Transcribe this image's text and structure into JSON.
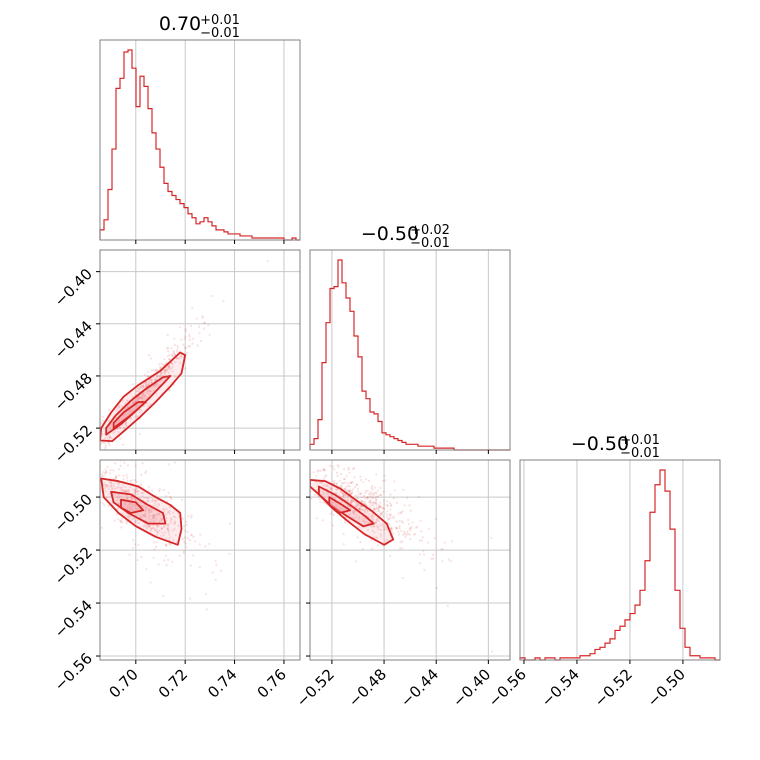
{
  "chart_data": {
    "type": "corner",
    "color": "#d62728",
    "fill_color": "#f4a6ab",
    "grid": true,
    "titles": [
      {
        "value": "0.70",
        "plus": "+0.01",
        "minus": "−0.01"
      },
      {
        "value": "−0.50",
        "plus": "+0.02",
        "minus": "−0.01"
      },
      {
        "value": "−0.50",
        "plus": "+0.01",
        "minus": "−0.01"
      }
    ],
    "params": [
      {
        "range": [
          0.6855,
          0.7665
        ],
        "ticks": [
          0.7,
          0.72,
          0.74,
          0.76
        ],
        "tick_labels": [
          "0.70",
          "0.72",
          "0.74",
          "0.76"
        ]
      },
      {
        "range": [
          -0.5368,
          -0.3834
        ],
        "ticks": [
          -0.52,
          -0.48,
          -0.44,
          -0.4
        ],
        "tick_labels": [
          "−0.52",
          "−0.48",
          "−0.44",
          "−0.40"
        ]
      },
      {
        "range": [
          -0.5615,
          -0.486
        ],
        "ticks": [
          -0.56,
          -0.54,
          -0.52,
          -0.5
        ],
        "tick_labels": [
          "−0.56",
          "−0.54",
          "−0.52",
          "−0.50"
        ]
      }
    ],
    "histograms": [
      {
        "bin_start": 0.6855,
        "bin_width": 0.00162,
        "counts": [
          0.05,
          0.1,
          0.25,
          0.45,
          0.75,
          0.8,
          0.93,
          0.94,
          0.85,
          0.66,
          0.81,
          0.76,
          0.65,
          0.53,
          0.45,
          0.36,
          0.28,
          0.24,
          0.22,
          0.2,
          0.18,
          0.16,
          0.13,
          0.11,
          0.08,
          0.09,
          0.11,
          0.09,
          0.07,
          0.05,
          0.05,
          0.04,
          0.03,
          0.03,
          0.03,
          0.02,
          0.02,
          0.02,
          0.01,
          0.01,
          0.01,
          0.01,
          0.01,
          0.01,
          0.01,
          0.01,
          0.0,
          0.0,
          0.01,
          0.0
        ]
      },
      {
        "bin_start": -0.5368,
        "bin_width": 0.003068,
        "counts": [
          0.03,
          0.06,
          0.16,
          0.46,
          0.67,
          0.85,
          0.86,
          1.0,
          0.88,
          0.8,
          0.73,
          0.6,
          0.49,
          0.31,
          0.27,
          0.2,
          0.19,
          0.15,
          0.09,
          0.08,
          0.07,
          0.06,
          0.05,
          0.04,
          0.03,
          0.03,
          0.03,
          0.02,
          0.02,
          0.02,
          0.02,
          0.01,
          0.01,
          0.01,
          0.01,
          0.01,
          0.0,
          0.0,
          0.0,
          0.0
        ]
      },
      {
        "bin_start": -0.5615,
        "bin_width": 0.0018875,
        "counts": [
          0.01,
          0.0,
          0.0,
          0.01,
          0.0,
          0.01,
          0.01,
          0.0,
          0.01,
          0.01,
          0.01,
          0.01,
          0.02,
          0.02,
          0.03,
          0.05,
          0.06,
          0.08,
          0.1,
          0.14,
          0.16,
          0.19,
          0.22,
          0.26,
          0.33,
          0.47,
          0.7,
          0.83,
          0.9,
          0.8,
          0.62,
          0.33,
          0.15,
          0.06,
          0.02,
          0.02,
          0.01,
          0.01,
          0.01,
          0.0
        ]
      }
    ],
    "joint_2d": [
      {
        "x_param": 0,
        "y_param": 1,
        "mean": [
          0.7015,
          -0.497
        ],
        "sd": [
          0.0085,
          0.019
        ],
        "corr": 0.97,
        "contours": [
          [
            [
              0.6855,
              -0.5295
            ],
            [
              0.6905,
              -0.53
            ],
            [
              0.696,
              -0.521
            ],
            [
              0.702,
              -0.511
            ],
            [
              0.708,
              -0.5
            ],
            [
              0.714,
              -0.488
            ],
            [
              0.7185,
              -0.478
            ],
            [
              0.72,
              -0.464
            ],
            [
              0.718,
              -0.462
            ],
            [
              0.71,
              -0.476
            ],
            [
              0.701,
              -0.487
            ],
            [
              0.695,
              -0.496
            ],
            [
              0.69,
              -0.508
            ],
            [
              0.686,
              -0.52
            ]
          ],
          [
            [
              0.688,
              -0.525
            ],
            [
              0.694,
              -0.517
            ],
            [
              0.7,
              -0.507
            ],
            [
              0.706,
              -0.496
            ],
            [
              0.711,
              -0.486
            ],
            [
              0.714,
              -0.48
            ],
            [
              0.711,
              -0.481
            ],
            [
              0.704,
              -0.49
            ],
            [
              0.698,
              -0.499
            ],
            [
              0.692,
              -0.51
            ],
            [
              0.688,
              -0.52
            ]
          ],
          [
            [
              0.691,
              -0.52
            ],
            [
              0.698,
              -0.51
            ],
            [
              0.704,
              -0.5
            ],
            [
              0.701,
              -0.5
            ],
            [
              0.695,
              -0.508
            ],
            [
              0.691,
              -0.516
            ]
          ]
        ]
      },
      {
        "x_param": 0,
        "y_param": 2,
        "mean": [
          0.7015,
          -0.5035
        ],
        "sd": [
          0.0085,
          0.0065
        ],
        "corr": -0.75,
        "contours": [
          [
            [
              0.686,
              -0.493
            ],
            [
              0.693,
              -0.494
            ],
            [
              0.701,
              -0.496
            ],
            [
              0.708,
              -0.5
            ],
            [
              0.714,
              -0.503
            ],
            [
              0.718,
              -0.506
            ],
            [
              0.7185,
              -0.512
            ],
            [
              0.717,
              -0.518
            ],
            [
              0.708,
              -0.515
            ],
            [
              0.7,
              -0.511
            ],
            [
              0.693,
              -0.506
            ],
            [
              0.687,
              -0.5
            ]
          ],
          [
            [
              0.69,
              -0.498
            ],
            [
              0.698,
              -0.499
            ],
            [
              0.705,
              -0.503
            ],
            [
              0.711,
              -0.506
            ],
            [
              0.712,
              -0.51
            ],
            [
              0.705,
              -0.51
            ],
            [
              0.697,
              -0.506
            ],
            [
              0.691,
              -0.502
            ]
          ],
          [
            [
              0.694,
              -0.501
            ],
            [
              0.7,
              -0.502
            ],
            [
              0.703,
              -0.505
            ],
            [
              0.698,
              -0.506
            ],
            [
              0.694,
              -0.504
            ]
          ]
        ]
      },
      {
        "x_param": 1,
        "y_param": 2,
        "mean": [
          -0.497,
          -0.5035
        ],
        "sd": [
          0.019,
          0.0065
        ],
        "corr": -0.75,
        "contours": [
          [
            [
              -0.5368,
              -0.4935
            ],
            [
              -0.525,
              -0.494
            ],
            [
              -0.513,
              -0.497
            ],
            [
              -0.502,
              -0.501
            ],
            [
              -0.49,
              -0.505
            ],
            [
              -0.478,
              -0.51
            ],
            [
              -0.473,
              -0.516
            ],
            [
              -0.48,
              -0.518
            ],
            [
              -0.495,
              -0.514
            ],
            [
              -0.508,
              -0.509
            ],
            [
              -0.52,
              -0.504
            ],
            [
              -0.53,
              -0.499
            ],
            [
              -0.5368,
              -0.496
            ]
          ],
          [
            [
              -0.53,
              -0.496
            ],
            [
              -0.518,
              -0.499
            ],
            [
              -0.506,
              -0.503
            ],
            [
              -0.495,
              -0.507
            ],
            [
              -0.488,
              -0.51
            ],
            [
              -0.496,
              -0.511
            ],
            [
              -0.509,
              -0.507
            ],
            [
              -0.521,
              -0.503
            ],
            [
              -0.53,
              -0.499
            ]
          ],
          [
            [
              -0.522,
              -0.5
            ],
            [
              -0.512,
              -0.503
            ],
            [
              -0.506,
              -0.505
            ],
            [
              -0.514,
              -0.506
            ],
            [
              -0.522,
              -0.503
            ]
          ]
        ]
      }
    ]
  }
}
